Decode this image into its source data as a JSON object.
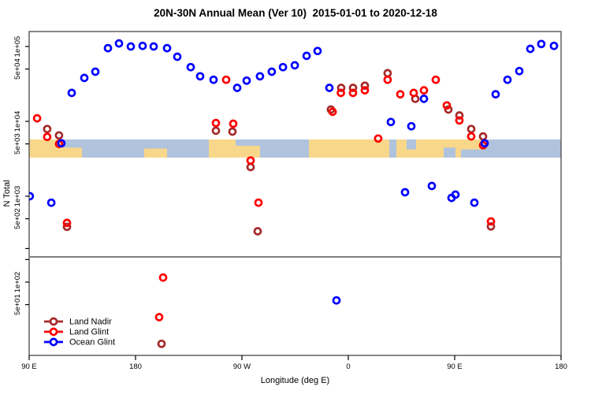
{
  "title": "20N-30N Annual Mean (Ver 10)  2015-01-01 to 2020-12-18",
  "chart_data": {
    "type": "scatter",
    "xlabel": "Longitude (deg E)",
    "ylabel": "N Total",
    "x_axis": {
      "unit": "deg E (wrapped, 90E to 180 twice)",
      "range": [
        90,
        540
      ],
      "ticks": [
        {
          "lon": 90,
          "label": "90 E"
        },
        {
          "lon": 180,
          "label": "180"
        },
        {
          "lon": 270,
          "label": "90 W"
        },
        {
          "lon": 360,
          "label": "0"
        },
        {
          "lon": 450,
          "label": "90 E"
        },
        {
          "lon": 540,
          "label": "180"
        }
      ]
    },
    "legend": {
      "position": "bottom-left",
      "entries": [
        {
          "label": "Land Nadir",
          "color": "#A52A2A"
        },
        {
          "label": "Land Glint",
          "color": "#FF0000"
        },
        {
          "label": "Ocean Glint",
          "color": "#0000FF"
        }
      ]
    },
    "panels": [
      {
        "name": "upper",
        "scale": "log10",
        "ticks": [
          {
            "value": 100000,
            "label": "1e+05"
          },
          {
            "value": 50000,
            "label": "5e+04"
          },
          {
            "value": 10000,
            "label": "1e+04"
          },
          {
            "value": 5000,
            "label": "5e+03"
          },
          {
            "value": 1000,
            "label": "1e+03"
          },
          {
            "value": 500,
            "label": "5e+02"
          },
          {
            "value": 200,
            "label": ""
          }
        ],
        "series": [
          {
            "name": "Land Nadir",
            "color": "#A52A2A",
            "points": [
              [
                105.3,
                7900
              ],
              [
                115.3,
                6500
              ],
              [
                122,
                390
              ],
              [
                248,
                7500
              ],
              [
                262,
                7300
              ],
              [
                277.3,
                2450
              ],
              [
                283.3,
                340
              ],
              [
                345.3,
                14400
              ],
              [
                354,
                28000
              ],
              [
                364,
                28000
              ],
              [
                374,
                30000
              ],
              [
                393.3,
                44000
              ],
              [
                416.7,
                20000
              ],
              [
                444.7,
                14400
              ],
              [
                454,
                12000
              ],
              [
                464,
                7900
              ],
              [
                474,
                6300
              ],
              [
                480.7,
                395
              ]
            ]
          },
          {
            "name": "Land Glint",
            "color": "#FF0000",
            "points": [
              [
                96.7,
                11000
              ],
              [
                105.3,
                6200
              ],
              [
                115.3,
                5000
              ],
              [
                122,
                440
              ],
              [
                248,
                9500
              ],
              [
                256.7,
                36000
              ],
              [
                262.7,
                9300
              ],
              [
                277.3,
                3000
              ],
              [
                284,
                820
              ],
              [
                346.7,
                13400
              ],
              [
                353.7,
                24000
              ],
              [
                364,
                24000
              ],
              [
                374,
                26000
              ],
              [
                385.3,
                5900
              ],
              [
                393.3,
                36000
              ],
              [
                404,
                23000
              ],
              [
                415.3,
                24000
              ],
              [
                424,
                26000
              ],
              [
                434,
                36000
              ],
              [
                443.3,
                16300
              ],
              [
                454,
                10300
              ],
              [
                464,
                6300
              ],
              [
                474,
                4800
              ],
              [
                480.7,
                460
              ]
            ]
          },
          {
            "name": "Ocean Glint",
            "color": "#0000FF",
            "points": [
              [
                90.5,
                1000
              ],
              [
                108.7,
                820
              ],
              [
                117.3,
                5100
              ],
              [
                126,
                24000
              ],
              [
                136.7,
                38000
              ],
              [
                146,
                46000
              ],
              [
                156.7,
                95000
              ],
              [
                166,
                110000
              ],
              [
                176,
                100000
              ],
              [
                186,
                102000
              ],
              [
                195.3,
                100000
              ],
              [
                206.7,
                95000
              ],
              [
                215.3,
                73000
              ],
              [
                226.7,
                53000
              ],
              [
                234.7,
                40000
              ],
              [
                246,
                36000
              ],
              [
                266,
                28000
              ],
              [
                274,
                35000
              ],
              [
                285.3,
                40000
              ],
              [
                295.3,
                46000
              ],
              [
                304.7,
                53000
              ],
              [
                314.7,
                56000
              ],
              [
                324.7,
                75000
              ],
              [
                334,
                87000
              ],
              [
                344,
                28000
              ],
              [
                396,
                9800
              ],
              [
                408,
                1130
              ],
              [
                413.3,
                8600
              ],
              [
                424,
                20000
              ],
              [
                430.7,
                1370
              ],
              [
                447.3,
                950
              ],
              [
                450.7,
                1050
              ],
              [
                466.7,
                820
              ],
              [
                475.3,
                5100
              ],
              [
                484.7,
                23000
              ],
              [
                494.7,
                36000
              ],
              [
                504.7,
                47000
              ],
              [
                514,
                93000
              ],
              [
                523.3,
                108000
              ],
              [
                534,
                102000
              ]
            ]
          }
        ]
      },
      {
        "name": "lower",
        "scale": "log10",
        "ticks": [
          {
            "value": 200,
            "label": ""
          },
          {
            "value": 100,
            "label": "1e+02"
          },
          {
            "value": 50,
            "label": "5e+01"
          }
        ],
        "series": [
          {
            "name": "Land Nadir",
            "color": "#A52A2A",
            "points": [
              [
                202,
                15
              ]
            ]
          },
          {
            "name": "Land Glint",
            "color": "#FF0000",
            "points": [
              [
                203.3,
                115
              ],
              [
                200,
                34
              ]
            ]
          },
          {
            "name": "Ocean Glint",
            "color": "#0000FF",
            "points": [
              [
                350,
                57
              ]
            ]
          }
        ]
      }
    ],
    "map_strip": {
      "description": "20N-30N latitude world-map band drawn across the upper panel",
      "ocean_color": "#AFC3DD",
      "land_color": "#F8D78A",
      "land_regions": [
        {
          "lon0": 90,
          "lon1": 119.3,
          "top": 0,
          "bot": 1
        },
        {
          "lon0": 119.3,
          "lon1": 134.7,
          "top": 0.45,
          "bot": 1
        },
        {
          "lon0": 187.3,
          "lon1": 206.7,
          "top": 0.5,
          "bot": 1
        },
        {
          "lon0": 242,
          "lon1": 264.7,
          "top": 0,
          "bot": 1
        },
        {
          "lon0": 264.7,
          "lon1": 285.3,
          "top": 0.35,
          "bot": 1
        },
        {
          "lon0": 326.7,
          "lon1": 473.3,
          "top": 0,
          "bot": 1
        }
      ],
      "water_over_land": [
        {
          "lon0": 394.7,
          "lon1": 400.7,
          "top": 0,
          "bot": 1
        },
        {
          "lon0": 409.3,
          "lon1": 417.3,
          "top": 0,
          "bot": 0.55
        },
        {
          "lon0": 440.7,
          "lon1": 450.7,
          "top": 0.45,
          "bot": 1
        },
        {
          "lon0": 455.3,
          "lon1": 473.3,
          "top": 0.55,
          "bot": 1
        }
      ]
    }
  }
}
